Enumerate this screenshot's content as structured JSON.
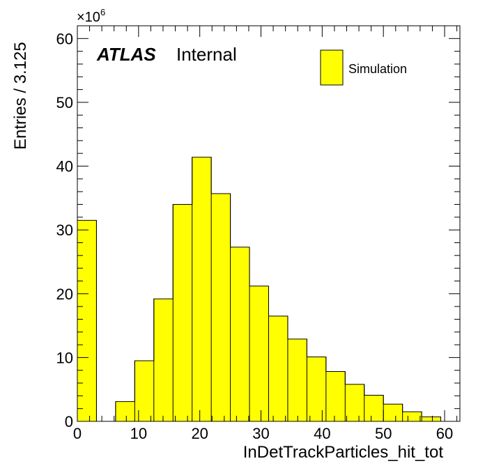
{
  "chart_data": {
    "type": "bar",
    "histogram": true,
    "bin_width": 3.125,
    "xlabel": "InDetTrackParticles_hit_tot",
    "ylabel": "Entries / 3.125",
    "y_multiplier_base": "×10",
    "y_multiplier_exp": "6",
    "xlim": [
      0,
      62.5
    ],
    "ylim": [
      0,
      62
    ],
    "x_ticks": [
      0,
      10,
      20,
      30,
      40,
      50,
      60
    ],
    "y_ticks": [
      0,
      10,
      20,
      30,
      40,
      50,
      60
    ],
    "fill_color": "#ffff00",
    "edge_color": "#000000",
    "grid": false,
    "legend_position": "top-right",
    "series": [
      {
        "name": "Simulation",
        "bin_edges": [
          0,
          3.125,
          6.25,
          9.375,
          12.5,
          15.625,
          18.75,
          21.875,
          25,
          28.125,
          31.25,
          34.375,
          37.5,
          40.625,
          43.75,
          46.875,
          50,
          53.125,
          56.25,
          59.375
        ],
        "values": [
          31.5,
          0,
          3.1,
          9.5,
          19.2,
          34.0,
          41.4,
          35.7,
          27.3,
          21.2,
          16.5,
          12.9,
          10.1,
          7.8,
          5.8,
          4.1,
          2.7,
          1.5,
          0.7
        ]
      }
    ]
  },
  "labels": {
    "atlas": "ATLAS",
    "internal": "Internal"
  }
}
